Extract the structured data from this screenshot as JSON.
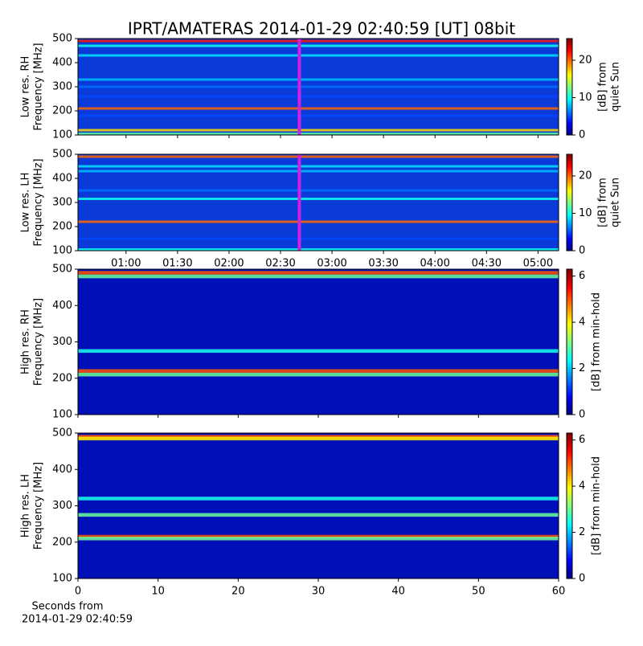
{
  "figure": {
    "title": "IPRT/AMATERAS 2014-01-29 02:40:59 [UT]   08bit",
    "xlabel": [
      "Seconds from",
      "2014-01-29 02:40:59"
    ]
  },
  "chart_data": [
    {
      "type": "heatmap",
      "ylabel": [
        "Low res. RH",
        "Frequency [MHz]"
      ],
      "ylim": [
        100,
        500
      ],
      "yticks": [
        100,
        200,
        300,
        400,
        500
      ],
      "xlim": [
        32,
        312
      ],
      "xticks": [
        60,
        90,
        120,
        150,
        180,
        210,
        240,
        270,
        300
      ],
      "background_color": "#0a3ad8",
      "marker_x": 160.98,
      "marker_color": "#d020e0",
      "bands": [
        {
          "freq": 490,
          "level": 22
        },
        {
          "freq": 470,
          "level": 10
        },
        {
          "freq": 430,
          "level": 9
        },
        {
          "freq": 330,
          "level": 8
        },
        {
          "freq": 300,
          "level": 6
        },
        {
          "freq": 260,
          "level": 5
        },
        {
          "freq": 210,
          "level": 20
        },
        {
          "freq": 180,
          "level": 5
        },
        {
          "freq": 120,
          "level": 17
        },
        {
          "freq": 105,
          "level": 12
        }
      ],
      "colorbar": {
        "label": [
          "[dB] from",
          "quiet Sun"
        ],
        "lim": [
          0,
          25.8
        ],
        "ticks": [
          0,
          10,
          20
        ]
      }
    },
    {
      "type": "heatmap",
      "ylabel": [
        "Low res. LH",
        "Frequency [MHz]"
      ],
      "ylim": [
        100,
        500
      ],
      "yticks": [
        100,
        200,
        300,
        400,
        500
      ],
      "xlim": [
        32,
        312
      ],
      "xticks": [
        {
          "value": 60,
          "label": "01:00"
        },
        {
          "value": 90,
          "label": "01:30"
        },
        {
          "value": 120,
          "label": "02:00"
        },
        {
          "value": 150,
          "label": "02:30"
        },
        {
          "value": 180,
          "label": "03:00"
        },
        {
          "value": 210,
          "label": "03:30"
        },
        {
          "value": 240,
          "label": "04:00"
        },
        {
          "value": 270,
          "label": "04:30"
        },
        {
          "value": 300,
          "label": "05:00"
        }
      ],
      "background_color": "#0a3ad8",
      "marker_x": 160.98,
      "marker_color": "#d020e0",
      "bands": [
        {
          "freq": 490,
          "level": 20
        },
        {
          "freq": 450,
          "level": 9
        },
        {
          "freq": 430,
          "level": 8
        },
        {
          "freq": 350,
          "level": 6
        },
        {
          "freq": 315,
          "level": 10
        },
        {
          "freq": 220,
          "level": 20
        },
        {
          "freq": 150,
          "level": 5
        },
        {
          "freq": 105,
          "level": 10
        }
      ],
      "colorbar": {
        "label": [
          "[dB] from",
          "quiet Sun"
        ],
        "lim": [
          0,
          25.8
        ],
        "ticks": [
          0,
          10,
          20
        ]
      }
    },
    {
      "type": "heatmap",
      "ylabel": [
        "High res. RH",
        "Frequency [MHz]"
      ],
      "ylim": [
        100,
        500
      ],
      "yticks": [
        100,
        200,
        300,
        400,
        500
      ],
      "xlim": [
        0,
        60
      ],
      "xticks": [
        0,
        10,
        20,
        30,
        40,
        50,
        60
      ],
      "background_color": "#0010b8",
      "bands": [
        {
          "freq": 490,
          "level": 5
        },
        {
          "freq": 480,
          "level": 3
        },
        {
          "freq": 275,
          "level": 2.5
        },
        {
          "freq": 220,
          "level": 5
        },
        {
          "freq": 210,
          "level": 3
        }
      ],
      "colorbar": {
        "label": [
          "[dB] from min-hold"
        ],
        "lim": [
          0,
          6.3
        ],
        "ticks": [
          0,
          2,
          4,
          6
        ]
      }
    },
    {
      "type": "heatmap",
      "ylabel": [
        "High res. LH",
        "Frequency [MHz]"
      ],
      "ylim": [
        100,
        500
      ],
      "yticks": [
        100,
        200,
        300,
        400,
        500
      ],
      "xlim": [
        0,
        60
      ],
      "xticks": [
        0,
        10,
        20,
        30,
        40,
        50,
        60
      ],
      "show_xtick_labels": true,
      "background_color": "#0010b8",
      "bands": [
        {
          "freq": 490,
          "level": 5
        },
        {
          "freq": 485,
          "level": 4
        },
        {
          "freq": 320,
          "level": 2.5
        },
        {
          "freq": 275,
          "level": 3
        },
        {
          "freq": 215,
          "level": 5
        },
        {
          "freq": 210,
          "level": 3
        }
      ],
      "colorbar": {
        "label": [
          "[dB] from min-hold"
        ],
        "lim": [
          0,
          6.3
        ],
        "ticks": [
          0,
          2,
          4,
          6
        ]
      }
    }
  ]
}
